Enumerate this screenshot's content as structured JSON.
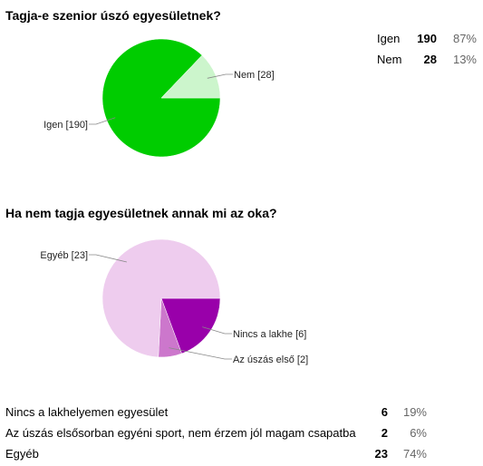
{
  "questions": [
    {
      "title": "Tagja-e szenior úszó egyesületnek?",
      "summary": [
        {
          "label": "Igen",
          "count": "190",
          "percent": "87%"
        },
        {
          "label": "Nem",
          "count": "28",
          "percent": "13%"
        }
      ]
    },
    {
      "title": "Ha nem tagja egyesületnek annak mi az oka?",
      "summary": [
        {
          "label": "Nincs a lakhelyemen egyesület",
          "count": "6",
          "percent": "19%"
        },
        {
          "label": "Az úszás elsősorban egyéni sport, nem érzem jól magam csapatba",
          "count": "2",
          "percent": "6%"
        },
        {
          "label": "Egyéb",
          "count": "23",
          "percent": "74%"
        }
      ]
    }
  ],
  "chart_data": [
    {
      "type": "pie",
      "title": "Tagja-e szenior úszó egyesületnek?",
      "categories": [
        "Igen",
        "Nem"
      ],
      "values": [
        190,
        28
      ],
      "slice_labels": [
        "Igen [190]",
        "Nem [28]"
      ],
      "colors": [
        "#00cc00",
        "#ccf5cc"
      ]
    },
    {
      "type": "pie",
      "title": "Ha nem tagja egyesületnek annak mi az oka?",
      "categories": [
        "Nincs a lakhe",
        "Az úszás első",
        "Egyéb"
      ],
      "values": [
        6,
        2,
        23
      ],
      "slice_labels": [
        "Nincs a lakhe [6]",
        "Az úszás első [2]",
        "Egyéb [23]"
      ],
      "colors": [
        "#9900aa",
        "#cc77cc",
        "#eeccee"
      ]
    }
  ]
}
